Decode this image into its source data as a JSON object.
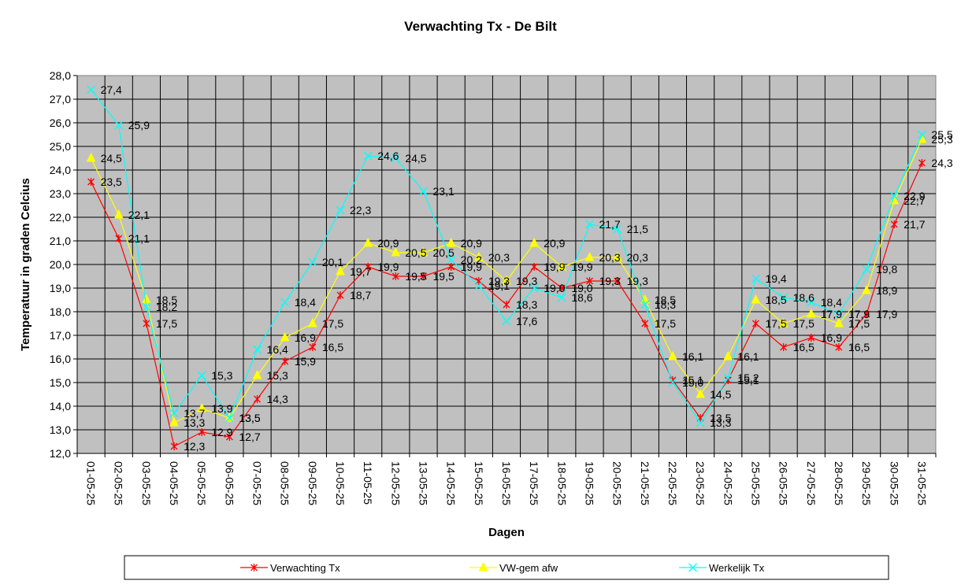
{
  "chart_data": {
    "type": "line",
    "title": "Verwachting Tx - De Bilt",
    "xlabel": "Dagen",
    "ylabel": "Temperatuur in graden Celcius",
    "ylim": [
      12,
      28
    ],
    "ystep": 1,
    "ytick_format": "comma-1-decimal",
    "grid": true,
    "legend_position": "bottom",
    "plot_background": "#c0c0c0",
    "categories": [
      "01-05-25",
      "02-05-25",
      "03-05-25",
      "04-05-25",
      "05-05-25",
      "06-05-25",
      "07-05-25",
      "08-05-25",
      "09-05-25",
      "10-05-25",
      "11-05-25",
      "12-05-25",
      "13-05-25",
      "14-05-25",
      "15-05-25",
      "16-05-25",
      "17-05-25",
      "18-05-25",
      "19-05-25",
      "20-05-25",
      "21-05-25",
      "22-05-25",
      "23-05-25",
      "24-05-25",
      "25-05-25",
      "26-05-25",
      "27-05-25",
      "28-05-25",
      "29-05-25",
      "30-05-25",
      "31-05-25"
    ],
    "series": [
      {
        "name": "Verwachting Tx",
        "color": "#ff0000",
        "marker": "star",
        "values": [
          23.5,
          21.1,
          17.5,
          12.3,
          12.9,
          12.7,
          14.3,
          15.9,
          16.5,
          18.7,
          19.9,
          19.5,
          19.5,
          19.9,
          19.3,
          18.3,
          19.9,
          19.0,
          19.3,
          19.3,
          17.5,
          15.1,
          13.5,
          15.1,
          17.5,
          16.5,
          16.9,
          16.5,
          17.9,
          21.7,
          24.3
        ]
      },
      {
        "name": "VW-gem afw",
        "color": "#ffff00",
        "marker": "triangle",
        "values": [
          24.5,
          22.1,
          18.5,
          13.3,
          13.9,
          13.5,
          15.3,
          16.9,
          17.5,
          19.7,
          20.9,
          20.5,
          20.5,
          20.9,
          20.3,
          19.3,
          20.9,
          19.9,
          20.3,
          20.3,
          18.5,
          16.1,
          14.5,
          16.1,
          18.5,
          17.5,
          17.9,
          17.5,
          18.9,
          22.7,
          25.3
        ]
      },
      {
        "name": "Werkelijk Tx",
        "color": "#00ffff",
        "marker": "x",
        "values": [
          27.4,
          25.9,
          18.2,
          13.7,
          15.3,
          13.5,
          16.4,
          18.4,
          20.1,
          22.3,
          24.6,
          24.5,
          23.1,
          20.2,
          19.1,
          17.6,
          19.0,
          18.6,
          21.7,
          21.5,
          18.3,
          15.0,
          13.3,
          15.2,
          19.4,
          18.6,
          18.4,
          17.9,
          19.8,
          22.9,
          25.5
        ]
      }
    ]
  }
}
